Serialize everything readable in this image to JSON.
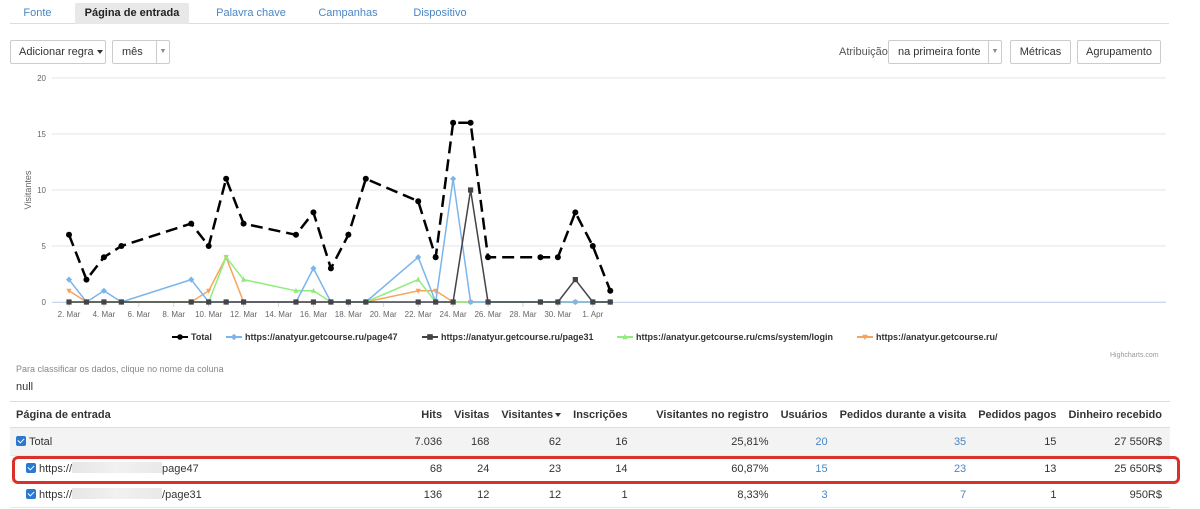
{
  "tabs": [
    "Fonte",
    "Página de entrada",
    "Palavra chave",
    "Campanhas",
    "Dispositivo"
  ],
  "toolbar": {
    "add_rule": "Adicionar regra",
    "period": "mês",
    "attribution_label": "Atribuição",
    "attribution_value": "na primeira fonte",
    "metrics": "Métricas",
    "grouping": "Agrupamento"
  },
  "chart_data": {
    "type": "line",
    "ylabel": "Visitantes",
    "xlabel": "",
    "ylim": [
      0,
      20
    ],
    "yticks": [
      0,
      5,
      10,
      15,
      20
    ],
    "xticks": [
      "2. Mar",
      "4. Mar",
      "6. Mar",
      "8. Mar",
      "10. Mar",
      "12. Mar",
      "14. Mar",
      "16. Mar",
      "18. Mar",
      "20. Mar",
      "22. Mar",
      "24. Mar",
      "26. Mar",
      "28. Mar",
      "30. Mar",
      "1. Apr"
    ],
    "legend_position": "bottom",
    "grid": true,
    "series": [
      {
        "name": "Total",
        "color": "#000000",
        "dashed": true,
        "marker": "circle",
        "points": [
          [
            0,
            6
          ],
          [
            1,
            2
          ],
          [
            2,
            4
          ],
          [
            3,
            5
          ],
          [
            7,
            7
          ],
          [
            8,
            5
          ],
          [
            9,
            11
          ],
          [
            10,
            7
          ],
          [
            13,
            6
          ],
          [
            14,
            8
          ],
          [
            15,
            3
          ],
          [
            16,
            6
          ],
          [
            17,
            11
          ],
          [
            20,
            9
          ],
          [
            21,
            4
          ],
          [
            22,
            16
          ],
          [
            23,
            16
          ],
          [
            24,
            4
          ],
          [
            27,
            4
          ],
          [
            28,
            4
          ],
          [
            29,
            8
          ],
          [
            30,
            5
          ],
          [
            31,
            1
          ]
        ]
      },
      {
        "name": "https://anatyur.getcourse.ru/page47",
        "color": "#7cb5ec",
        "dashed": false,
        "marker": "diamond",
        "points": [
          [
            0,
            2
          ],
          [
            1,
            0
          ],
          [
            2,
            1
          ],
          [
            3,
            0
          ],
          [
            7,
            2
          ],
          [
            8,
            0
          ],
          [
            9,
            0
          ],
          [
            10,
            0
          ],
          [
            13,
            0
          ],
          [
            14,
            3
          ],
          [
            15,
            0
          ],
          [
            16,
            0
          ],
          [
            17,
            0
          ],
          [
            20,
            4
          ],
          [
            21,
            0
          ],
          [
            22,
            11
          ],
          [
            23,
            0
          ],
          [
            24,
            0
          ],
          [
            27,
            0
          ],
          [
            28,
            0
          ],
          [
            29,
            0
          ],
          [
            30,
            0
          ],
          [
            31,
            0
          ]
        ]
      },
      {
        "name": "https://anatyur.getcourse.ru/page31",
        "color": "#434348",
        "dashed": false,
        "marker": "square",
        "points": [
          [
            0,
            0
          ],
          [
            1,
            0
          ],
          [
            2,
            0
          ],
          [
            3,
            0
          ],
          [
            7,
            0
          ],
          [
            8,
            0
          ],
          [
            9,
            0
          ],
          [
            10,
            0
          ],
          [
            13,
            0
          ],
          [
            14,
            0
          ],
          [
            15,
            0
          ],
          [
            16,
            0
          ],
          [
            17,
            0
          ],
          [
            20,
            0
          ],
          [
            21,
            0
          ],
          [
            22,
            0
          ],
          [
            23,
            10
          ],
          [
            24,
            0
          ],
          [
            27,
            0
          ],
          [
            28,
            0
          ],
          [
            29,
            2
          ],
          [
            30,
            0
          ],
          [
            31,
            0
          ]
        ]
      },
      {
        "name": "https://anatyur.getcourse.ru/cms/system/login",
        "color": "#90ed7d",
        "dashed": false,
        "marker": "triangle",
        "points": [
          [
            0,
            0
          ],
          [
            1,
            0
          ],
          [
            2,
            0
          ],
          [
            3,
            0
          ],
          [
            7,
            0
          ],
          [
            8,
            0
          ],
          [
            9,
            4
          ],
          [
            10,
            2
          ],
          [
            13,
            1
          ],
          [
            14,
            1
          ],
          [
            15,
            0
          ],
          [
            16,
            0
          ],
          [
            17,
            0
          ],
          [
            20,
            2
          ],
          [
            21,
            0
          ],
          [
            22,
            0
          ],
          [
            23,
            0
          ],
          [
            24,
            0
          ],
          [
            27,
            0
          ],
          [
            28,
            0
          ],
          [
            29,
            0
          ],
          [
            30,
            0
          ],
          [
            31,
            0
          ]
        ]
      },
      {
        "name": "https://anatyur.getcourse.ru/",
        "color": "#f7a35c",
        "dashed": false,
        "marker": "triangle-down",
        "points": [
          [
            0,
            1
          ],
          [
            1,
            0
          ],
          [
            2,
            0
          ],
          [
            3,
            0
          ],
          [
            7,
            0
          ],
          [
            8,
            1
          ],
          [
            9,
            4
          ],
          [
            10,
            0
          ],
          [
            13,
            0
          ],
          [
            14,
            0
          ],
          [
            15,
            0
          ],
          [
            16,
            0
          ],
          [
            17,
            0
          ],
          [
            20,
            1
          ],
          [
            21,
            1
          ],
          [
            22,
            0
          ],
          [
            23,
            0
          ],
          [
            24,
            0
          ],
          [
            27,
            0
          ],
          [
            28,
            0
          ],
          [
            29,
            0
          ],
          [
            30,
            0
          ],
          [
            31,
            0
          ]
        ]
      }
    ]
  },
  "credits": "Highcharts.com",
  "sort_hint": "Para classificar os dados, clique no nome da coluna",
  "null_text": "null",
  "table": {
    "headers": [
      "Página de entrada",
      "Hits",
      "Visitas",
      "Visitantes",
      "Inscrições",
      "Visitantes no registro",
      "Usuários",
      "Pedidos durante a visita",
      "Pedidos pagos",
      "Dinheiro recebido"
    ],
    "rows": [
      {
        "name": "Total",
        "cells": [
          "7.036",
          "168",
          "62",
          "16",
          "25,81%",
          "20",
          "35",
          "15",
          "27 550R$"
        ]
      },
      {
        "name_prefix": "https://",
        "name_suffix": "page47",
        "cells": [
          "68",
          "24",
          "23",
          "14",
          "60,87%",
          "15",
          "23",
          "13",
          "25 650R$"
        ]
      },
      {
        "name_prefix": "https://",
        "name_suffix": "/page31",
        "cells": [
          "136",
          "12",
          "12",
          "1",
          "8,33%",
          "3",
          "7",
          "1",
          "950R$"
        ]
      }
    ]
  }
}
